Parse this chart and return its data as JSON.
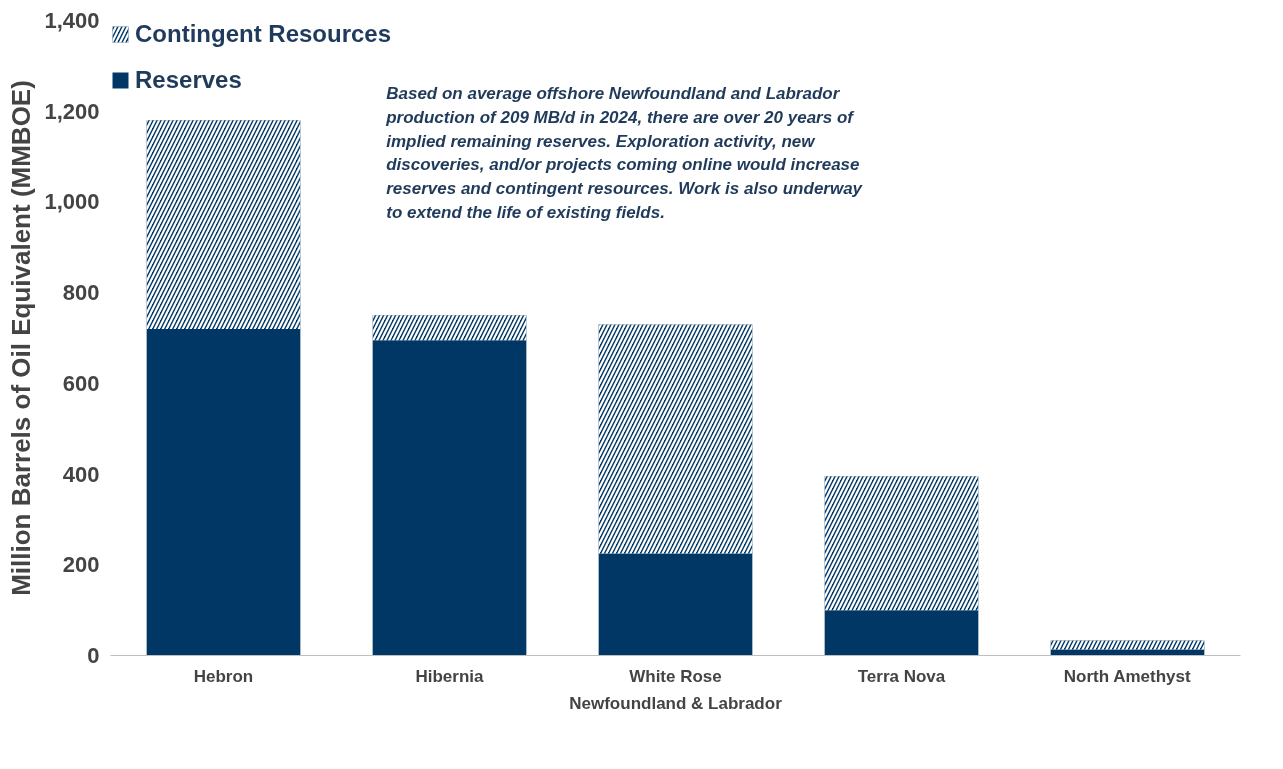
{
  "chart_data": {
    "type": "bar",
    "stacked": true,
    "xlabel": "Newfoundland & Labrador",
    "ylabel": "Million Barrels of Oil Equivalent (MMBOE)",
    "categories": [
      "Hebron",
      "Hibernia",
      "White Rose",
      "Terra Nova",
      "North Amethyst"
    ],
    "series": [
      {
        "name": "Reserves",
        "color": "#003764",
        "values": [
          720,
          695,
          225,
          100,
          13
        ]
      },
      {
        "name": "Contingent Resources",
        "color": "#003764",
        "values": [
          460,
          55,
          505,
          295,
          20
        ]
      }
    ],
    "ylim": [
      0,
      1400
    ],
    "yticks": [
      0,
      200,
      400,
      600,
      800,
      {
        "value": 1000,
        "label": "1,000"
      },
      {
        "value": 1200,
        "label": "1,200"
      },
      {
        "value": 1400,
        "label": "1,400"
      }
    ],
    "grid": false,
    "legend": "top left",
    "annotations": [
      "Based on average offshore Newfoundland and Labrador production of 209 MB/d in 2024, there are over 20 years of implied remaining reserves. Exploration activity, new discoveries, and/or projects coming online would increase reserves and contingent resources. Work is also underway to extend the life of existing fields."
    ]
  }
}
